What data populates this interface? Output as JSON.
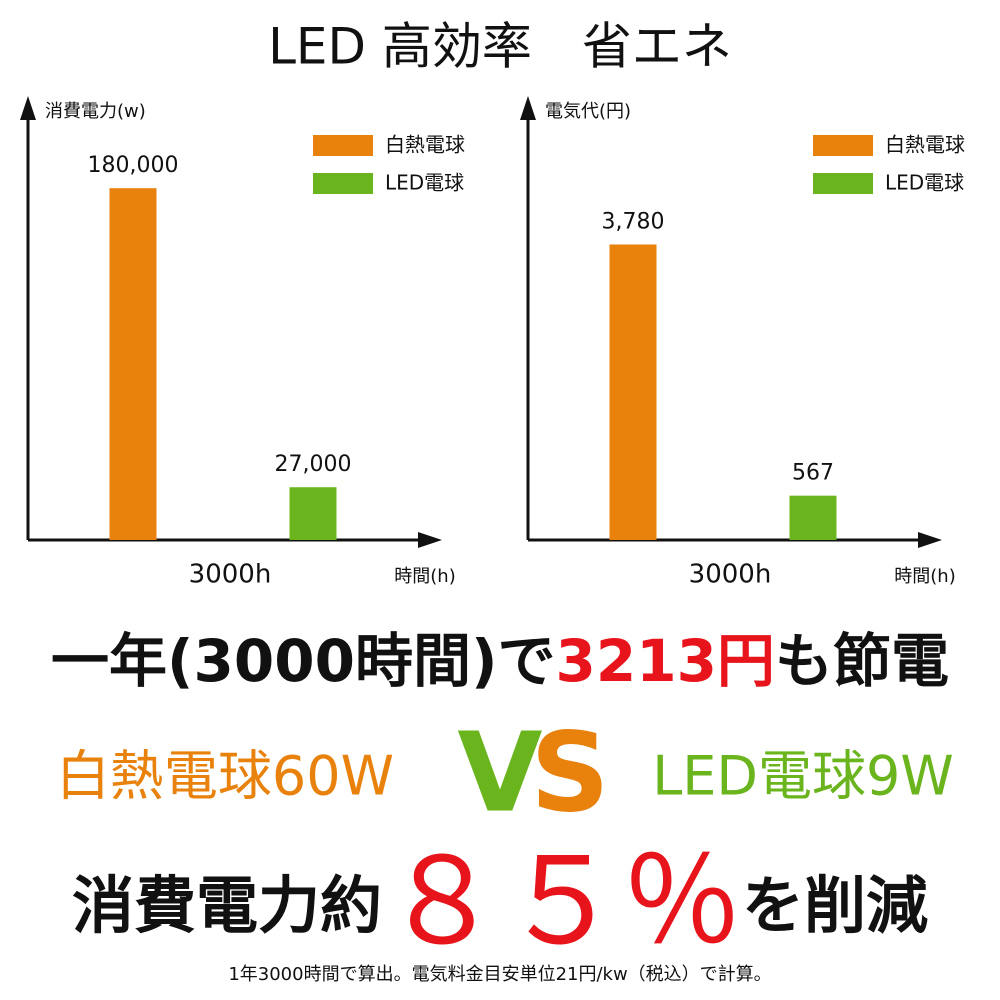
{
  "title": "LED 高効率　省エネ",
  "chart_data": [
    {
      "type": "bar",
      "y_label": "消費電力(w)",
      "x_label": "時間(h)",
      "categories": [
        "3000h"
      ],
      "series": [
        {
          "name": "白熱電球",
          "color": "#e8820c",
          "values": [
            180000
          ],
          "value_labels": [
            "180,000"
          ]
        },
        {
          "name": "LED電球",
          "color": "#6ab41e",
          "values": [
            27000
          ],
          "value_labels": [
            "27,000"
          ]
        }
      ],
      "ylim": [
        0,
        220000
      ],
      "legend": "upper right"
    },
    {
      "type": "bar",
      "y_label": "電気代(円)",
      "x_label": "時間(h)",
      "categories": [
        "3000h"
      ],
      "series": [
        {
          "name": "白熱電球",
          "color": "#e8820c",
          "values": [
            3780
          ],
          "value_labels": [
            "3,780"
          ]
        },
        {
          "name": "LED電球",
          "color": "#6ab41e",
          "values": [
            567
          ],
          "value_labels": [
            "567"
          ]
        }
      ],
      "ylim": [
        0,
        5500
      ],
      "legend": "upper right"
    }
  ],
  "saving": {
    "before": "一年(3000時間)で",
    "amount": "3213円",
    "after": "も節電"
  },
  "comparison": {
    "left": "白熱電球60W",
    "v": "V",
    "s": "S",
    "right": "LED電球9W"
  },
  "reduction": {
    "before": "消費電力約",
    "amount": "８５％",
    "after": "を削減"
  },
  "footnote": "1年3000時間で算出。電気料金目安単位21円/kw（税込）で計算。"
}
